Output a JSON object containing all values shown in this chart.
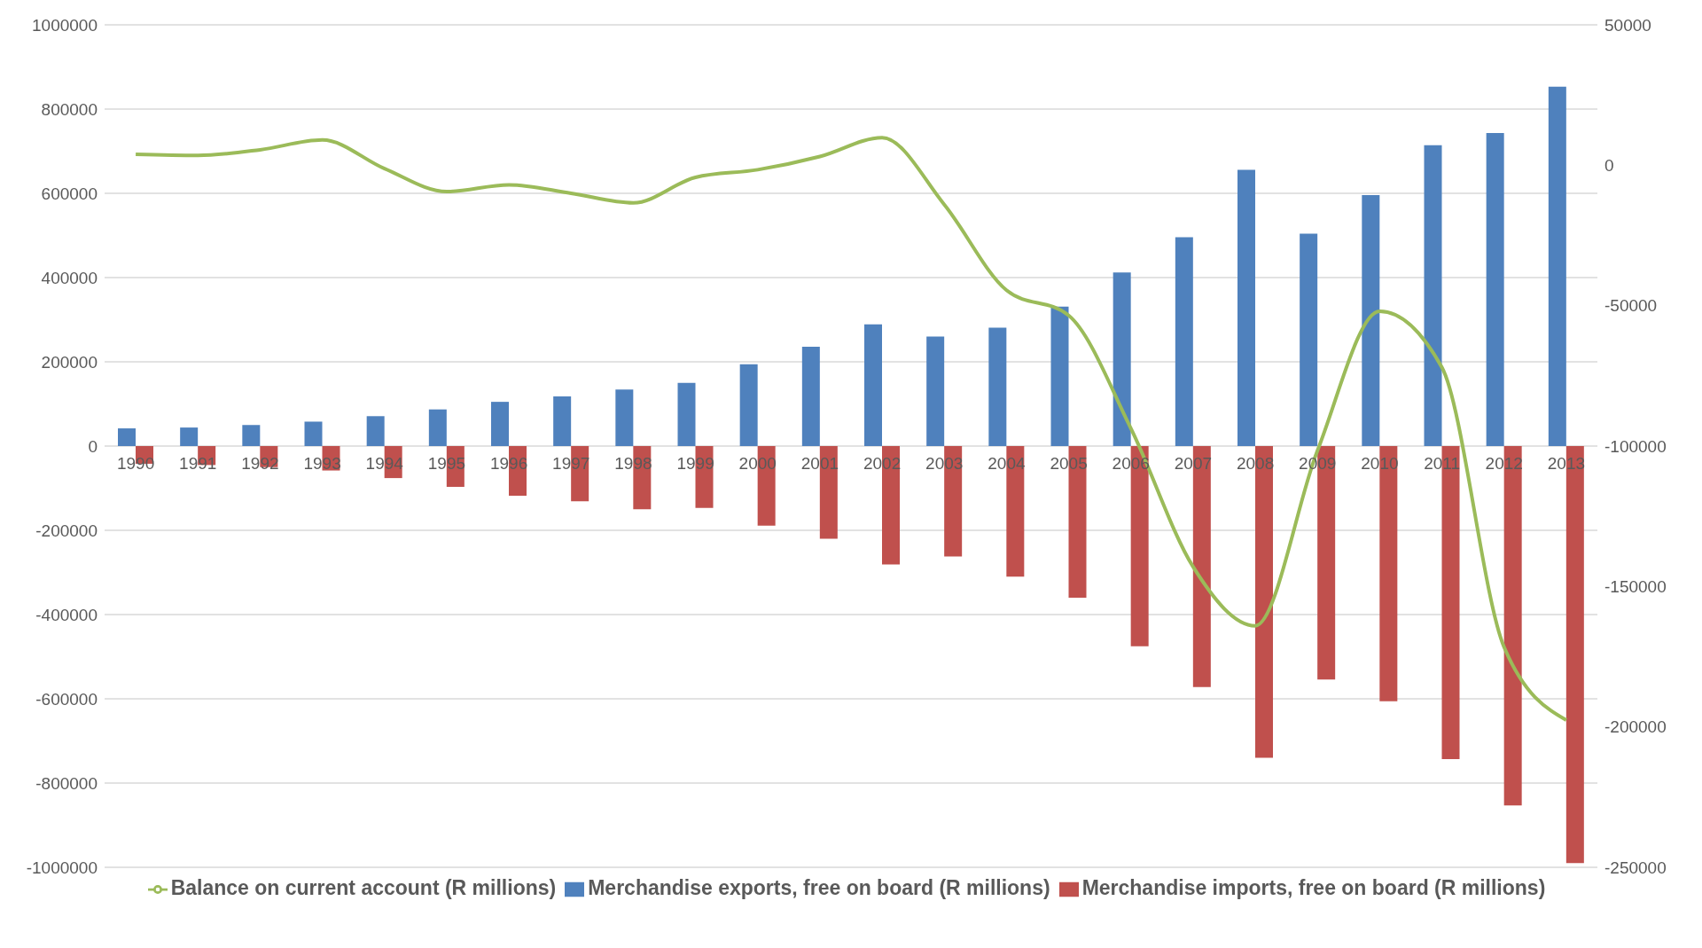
{
  "chart_data": {
    "type": "bar",
    "categories": [
      "1990",
      "1991",
      "1992",
      "1993",
      "1994",
      "1995",
      "1996",
      "1997",
      "1998",
      "1999",
      "2000",
      "2001",
      "2002",
      "2003",
      "2004",
      "2005",
      "2006",
      "2007",
      "2008",
      "2009",
      "2010",
      "2011",
      "2012",
      "2013"
    ],
    "series": [
      {
        "name": "Merchandise exports, free on board (R millions)",
        "color": "#4f81bd",
        "values": [
          42000,
          44000,
          50000,
          58000,
          71000,
          87000,
          105000,
          118000,
          134000,
          150000,
          194000,
          236000,
          289000,
          260000,
          281000,
          331000,
          412000,
          496000,
          656000,
          504000,
          596000,
          714000,
          743000,
          853000
        ]
      },
      {
        "name": "Merchandise imports, free on board (R millions)",
        "color": "#c0504d",
        "values": [
          -42000,
          -45000,
          -50000,
          -58000,
          -76000,
          -97000,
          -118000,
          -131000,
          -150000,
          -147000,
          -189000,
          -220000,
          -281000,
          -262000,
          -310000,
          -360000,
          -475000,
          -572000,
          -740000,
          -554000,
          -606000,
          -743000,
          -853000,
          -990000
        ]
      },
      {
        "name": "Balance on current account (R millions)",
        "type": "line",
        "axis": "y2",
        "color": "#9bbb59",
        "values": [
          3900,
          3500,
          5500,
          9000,
          -1200,
          -9400,
          -7000,
          -10000,
          -13400,
          -4300,
          -1600,
          3100,
          9800,
          -14000,
          -44500,
          -53500,
          -93700,
          -143000,
          -164000,
          -101600,
          -52000,
          -72000,
          -171600,
          -197600
        ]
      }
    ],
    "ylim": [
      -1000000,
      1000000
    ],
    "yticks": [
      -1000000,
      -800000,
      -600000,
      -400000,
      -200000,
      0,
      200000,
      400000,
      600000,
      800000,
      1000000
    ],
    "y2lim": [
      -250000,
      50000
    ],
    "y2ticks": [
      -250000,
      -200000,
      -150000,
      -100000,
      -50000,
      0,
      50000
    ],
    "grid": "y",
    "legend": "bottom",
    "marker": "none"
  }
}
